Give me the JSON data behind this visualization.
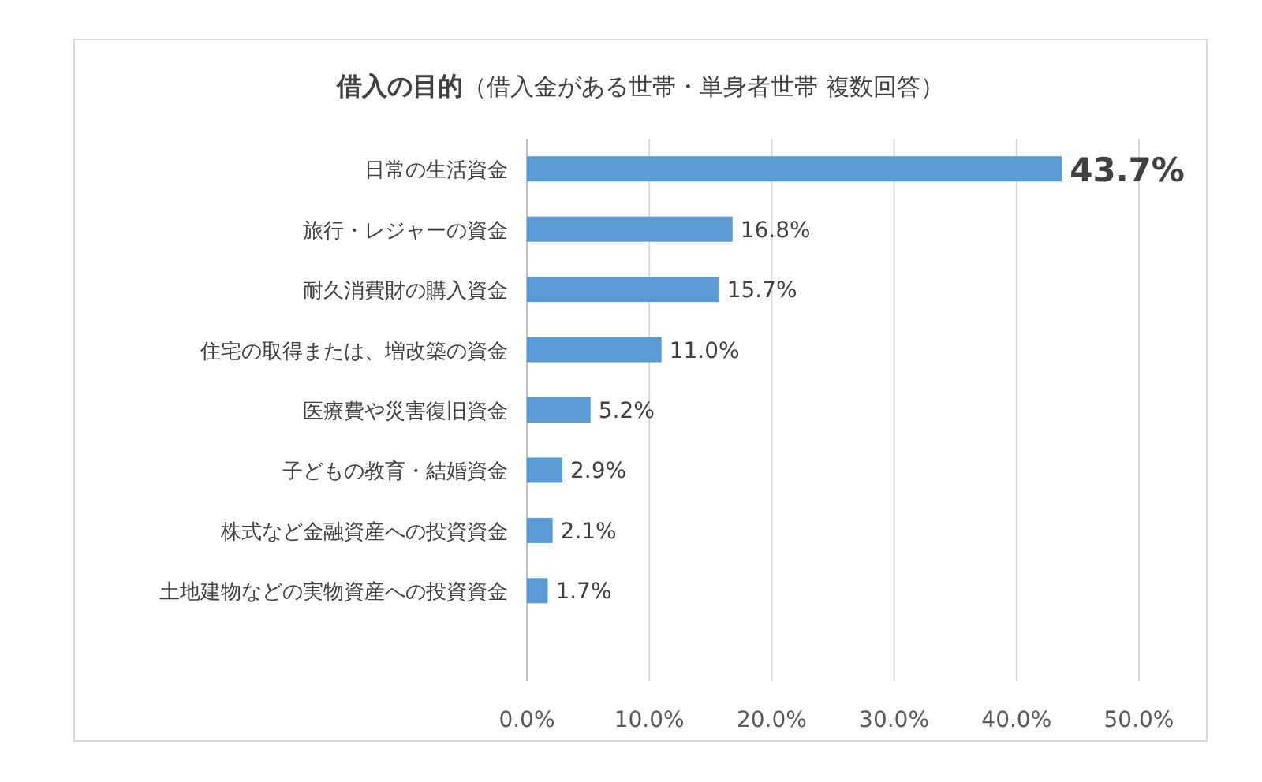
{
  "chart_data": {
    "type": "bar",
    "orientation": "horizontal",
    "title": "借入の目的",
    "subtitle": "（借入金がある世帯・単身者世帯 複数回答）",
    "categories": [
      "日常の生活資金",
      "旅行・レジャーの資金",
      "耐久消費財の購入資金",
      "住宅の取得または、増改築の資金",
      "医療費や災害復旧資金",
      "子どもの教育・結婚資金",
      "株式など金融資産への投資資金",
      "土地建物などの実物資産への投資資金"
    ],
    "values": [
      43.7,
      16.8,
      15.7,
      11.0,
      5.2,
      2.9,
      2.1,
      1.7
    ],
    "value_labels": [
      "43.7%",
      "16.8%",
      "15.7%",
      "11.0%",
      "5.2%",
      "2.9%",
      "2.1%",
      "1.7%"
    ],
    "color": "#5b9bd5",
    "xlim": [
      0,
      50
    ],
    "xticks": [
      {
        "value": 0,
        "label": "0.0%"
      },
      {
        "value": 10,
        "label": "10.0%"
      },
      {
        "value": 20,
        "label": "20.0%"
      },
      {
        "value": 30,
        "label": "30.0%"
      },
      {
        "value": 40,
        "label": "40.0%"
      },
      {
        "value": 50,
        "label": "50.0%"
      }
    ],
    "grid": "x"
  }
}
